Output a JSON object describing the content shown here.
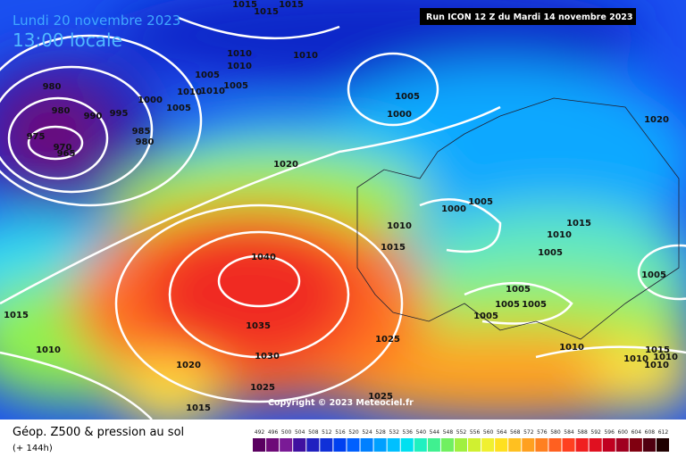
{
  "header": {
    "date": "Lundi 20 novembre 2023",
    "time": "13:00 locale"
  },
  "run": "Run ICON 12 Z du Mardi 14 novembre 2023",
  "copyright": "Copyright © 2023 Meteociel.fr",
  "legend": {
    "title": "Géop. Z500 & pression au sol",
    "lead": "(+ 144h)",
    "scale": [
      "492",
      "496",
      "500",
      "504",
      "508",
      "512",
      "516",
      "520",
      "524",
      "528",
      "532",
      "536",
      "540",
      "544",
      "548",
      "552",
      "556",
      "560",
      "564",
      "568",
      "572",
      "576",
      "580",
      "584",
      "588",
      "592",
      "596",
      "600",
      "604",
      "608",
      "612"
    ],
    "colors": [
      "#5a0060",
      "#6e0a78",
      "#7a1a96",
      "#4010a0",
      "#2020c0",
      "#1030d8",
      "#0040f0",
      "#0060ff",
      "#0080ff",
      "#00a0ff",
      "#00c0ff",
      "#00e0f0",
      "#20f0c0",
      "#40f090",
      "#70f060",
      "#a0f040",
      "#d0f030",
      "#f0f030",
      "#ffe020",
      "#ffc020",
      "#ffa020",
      "#ff8020",
      "#ff6020",
      "#ff4020",
      "#f02020",
      "#e01020",
      "#c00020",
      "#a00020",
      "#800010",
      "#500010",
      "#200000"
    ]
  },
  "isobars": [
    "1015",
    "1015",
    "1015",
    "1010",
    "1010",
    "1010",
    "1005",
    "1005",
    "1010",
    "1010",
    "1000",
    "1005",
    "980",
    "980",
    "990",
    "995",
    "985",
    "980",
    "975",
    "970",
    "965",
    "1005",
    "1000",
    "1020",
    "1020",
    "1000",
    "1005",
    "1010",
    "1015",
    "1010",
    "1015",
    "1005",
    "1040",
    "1005",
    "1005",
    "1005",
    "1005",
    "1005",
    "1015",
    "1035",
    "1025",
    "1010",
    "1030",
    "1010",
    "1015",
    "1010",
    "1010",
    "1010",
    "1020",
    "1025",
    "1015",
    "1025"
  ]
}
